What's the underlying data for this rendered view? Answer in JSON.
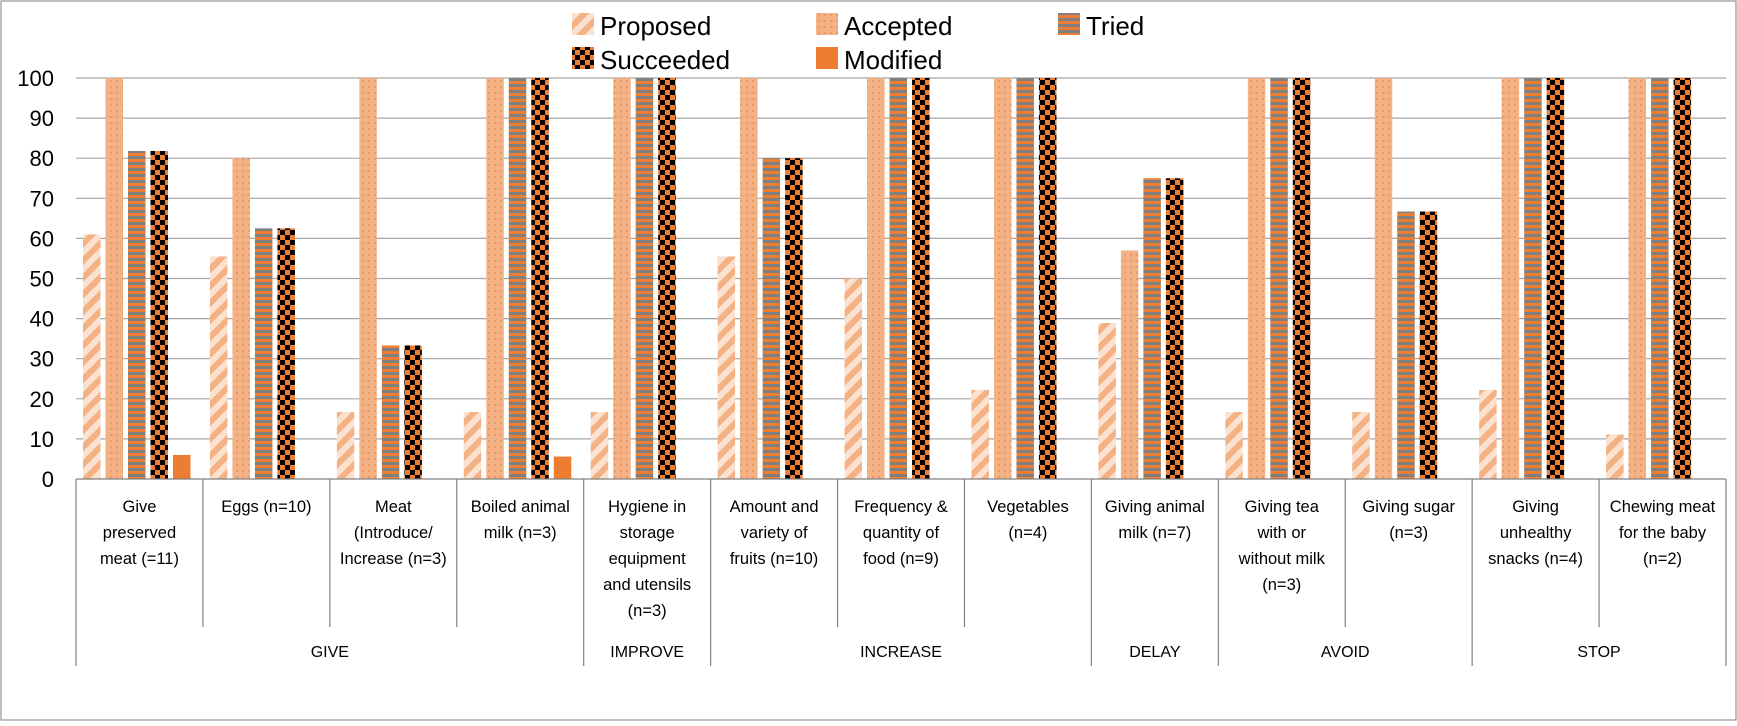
{
  "chart_data": {
    "type": "bar",
    "title": "",
    "xlabel": "",
    "ylabel": "",
    "ylim": [
      0,
      100
    ],
    "yticks": [
      0,
      10,
      20,
      30,
      40,
      50,
      60,
      70,
      80,
      90,
      100
    ],
    "grid": true,
    "legend_position": "top",
    "colors": {
      "proposed": "#f4b183",
      "accepted": "#f4b183",
      "tried": "#ed7d31",
      "succeeded": "#ed7d31",
      "modified": "#ed7d31",
      "tried_stripe": "#808080",
      "succeeded_check": "#000000",
      "gridline": "#a6a6a6",
      "axis": "#808080"
    },
    "groups": [
      {
        "label": "GIVE",
        "categories": [
          0,
          1,
          2,
          3
        ]
      },
      {
        "label": "IMPROVE",
        "categories": [
          4
        ]
      },
      {
        "label": "INCREASE",
        "categories": [
          5,
          6,
          7
        ]
      },
      {
        "label": "DELAY",
        "categories": [
          8
        ]
      },
      {
        "label": "AVOID",
        "categories": [
          9,
          10
        ]
      },
      {
        "label": "STOP",
        "categories": [
          11,
          12
        ]
      }
    ],
    "categories": [
      [
        "Give",
        "preserved",
        "meat (=11)"
      ],
      [
        "Eggs (n=10)"
      ],
      [
        "Meat",
        "(Introduce/",
        "Increase (n=3)"
      ],
      [
        "Boiled animal",
        "milk (n=3)"
      ],
      [
        "Hygiene in",
        "storage",
        "equipment",
        "and utensils",
        "(n=3)"
      ],
      [
        "Amount and",
        "variety of",
        "fruits (n=10)"
      ],
      [
        "Frequency &",
        "quantity of",
        "food (n=9)"
      ],
      [
        "Vegetables",
        "(n=4)"
      ],
      [
        "Giving animal",
        "milk (n=7)"
      ],
      [
        "Giving tea",
        "with or",
        "without milk",
        "(n=3)"
      ],
      [
        "Giving sugar",
        "(n=3)"
      ],
      [
        "Giving",
        "unhealthy",
        "snacks (n=4)"
      ],
      [
        "Chewing meat",
        "for the baby",
        "(n=2)"
      ]
    ],
    "series": [
      {
        "name": "Proposed",
        "pattern": "diagonal",
        "values": [
          61,
          55.5,
          16.7,
          16.7,
          16.7,
          55.5,
          50,
          22.2,
          38.9,
          16.7,
          16.7,
          22.2,
          11.1
        ]
      },
      {
        "name": "Accepted",
        "pattern": "dotted",
        "values": [
          100,
          80,
          100,
          100,
          100,
          100,
          100,
          100,
          57,
          100,
          100,
          100,
          100
        ]
      },
      {
        "name": "Tried",
        "pattern": "horizontal",
        "values": [
          81.8,
          62.5,
          33.3,
          100,
          100,
          80,
          100,
          100,
          75,
          100,
          66.7,
          100,
          100
        ]
      },
      {
        "name": "Succeeded",
        "pattern": "checker",
        "values": [
          81.8,
          62.5,
          33.3,
          100,
          100,
          80,
          100,
          100,
          75,
          100,
          66.7,
          100,
          100
        ]
      },
      {
        "name": "Modified",
        "pattern": "solid",
        "values": [
          6,
          0,
          0,
          5.6,
          0,
          0,
          0,
          0,
          0,
          0,
          0,
          0,
          0
        ]
      }
    ]
  }
}
